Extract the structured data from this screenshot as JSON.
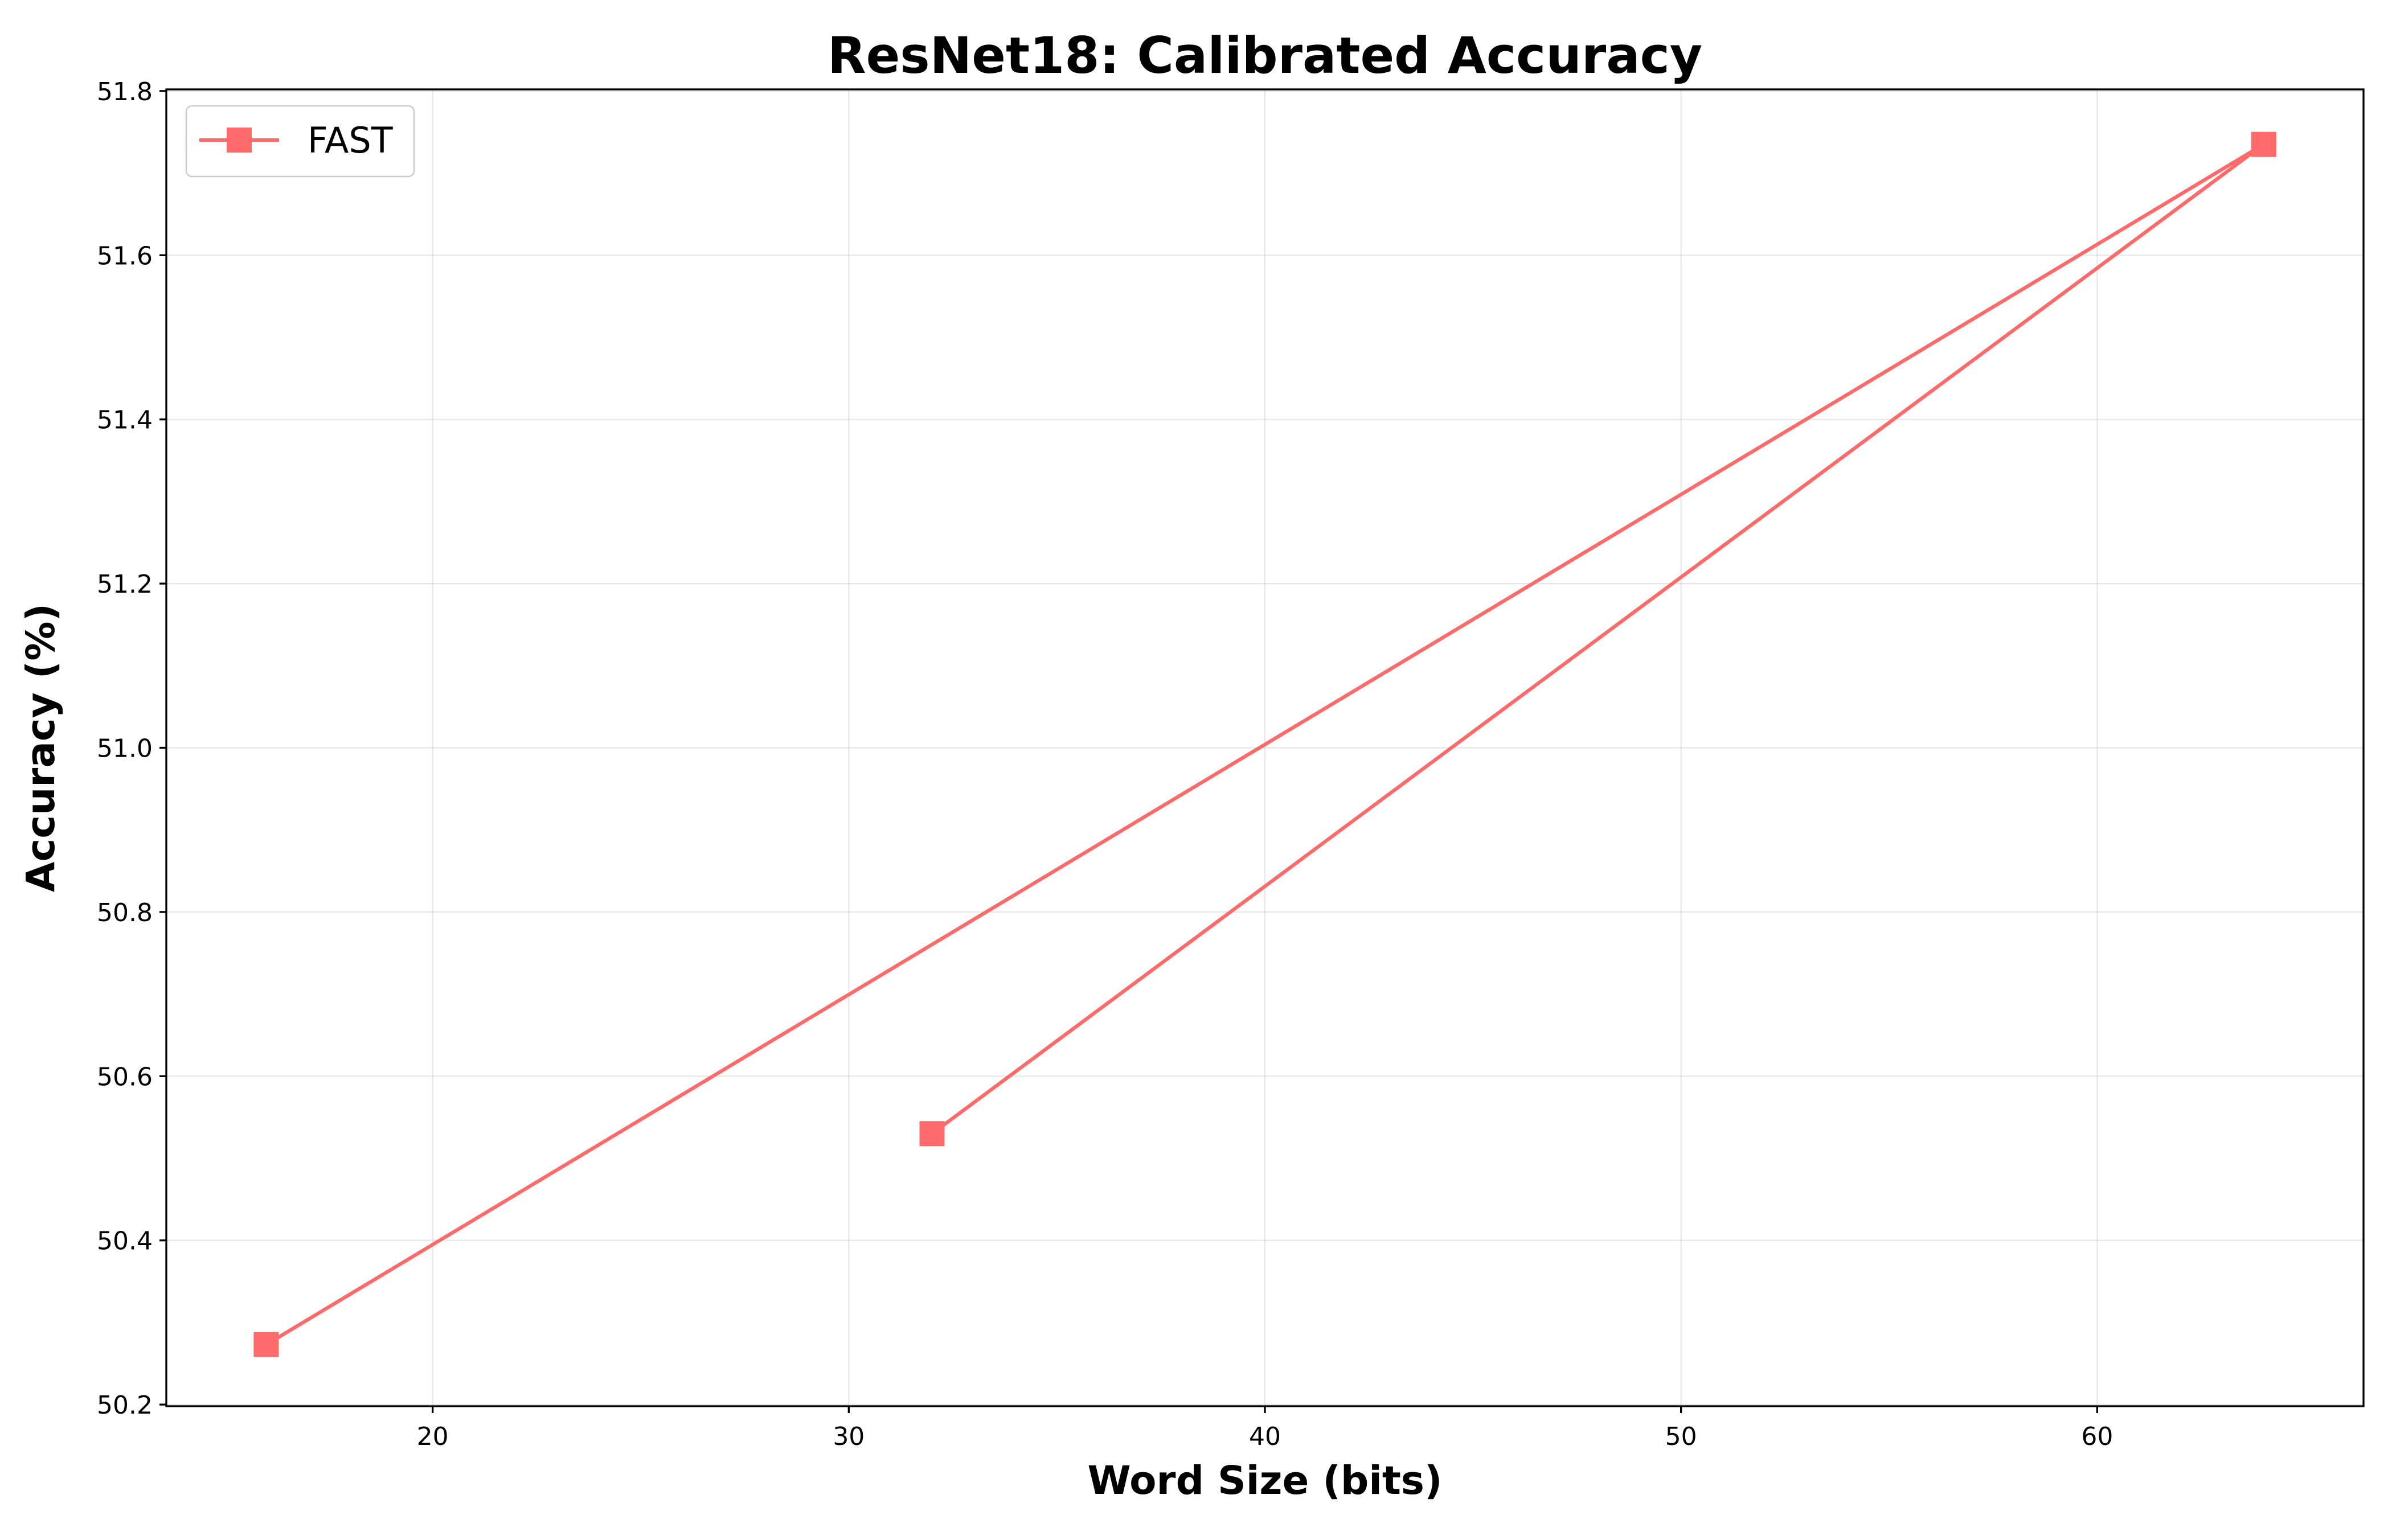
{
  "chart_data": {
    "type": "line",
    "title": "ResNet18: Calibrated Accuracy",
    "xlabel": "Word Size (bits)",
    "ylabel": "Accuracy (%)",
    "xlim": [
      13.6,
      66.4
    ],
    "ylim": [
      50.198,
      51.802
    ],
    "xticks": [
      20,
      30,
      40,
      50,
      60
    ],
    "yticks": [
      50.2,
      50.4,
      50.6,
      50.8,
      51.0,
      51.2,
      51.4,
      51.6,
      51.8
    ],
    "xtick_labels": [
      "20",
      "30",
      "40",
      "50",
      "60"
    ],
    "ytick_labels": [
      "50.2",
      "50.4",
      "50.6",
      "50.8",
      "51.0",
      "51.2",
      "51.4",
      "51.6",
      "51.8"
    ],
    "grid": true,
    "legend_position": "upper-left",
    "series": [
      {
        "name": "FAST",
        "color": "#ff6b6b",
        "marker": "square",
        "points": [
          {
            "x": 32,
            "y": 50.53
          },
          {
            "x": 64,
            "y": 51.735
          },
          {
            "x": 16,
            "y": 50.273
          }
        ]
      }
    ]
  }
}
